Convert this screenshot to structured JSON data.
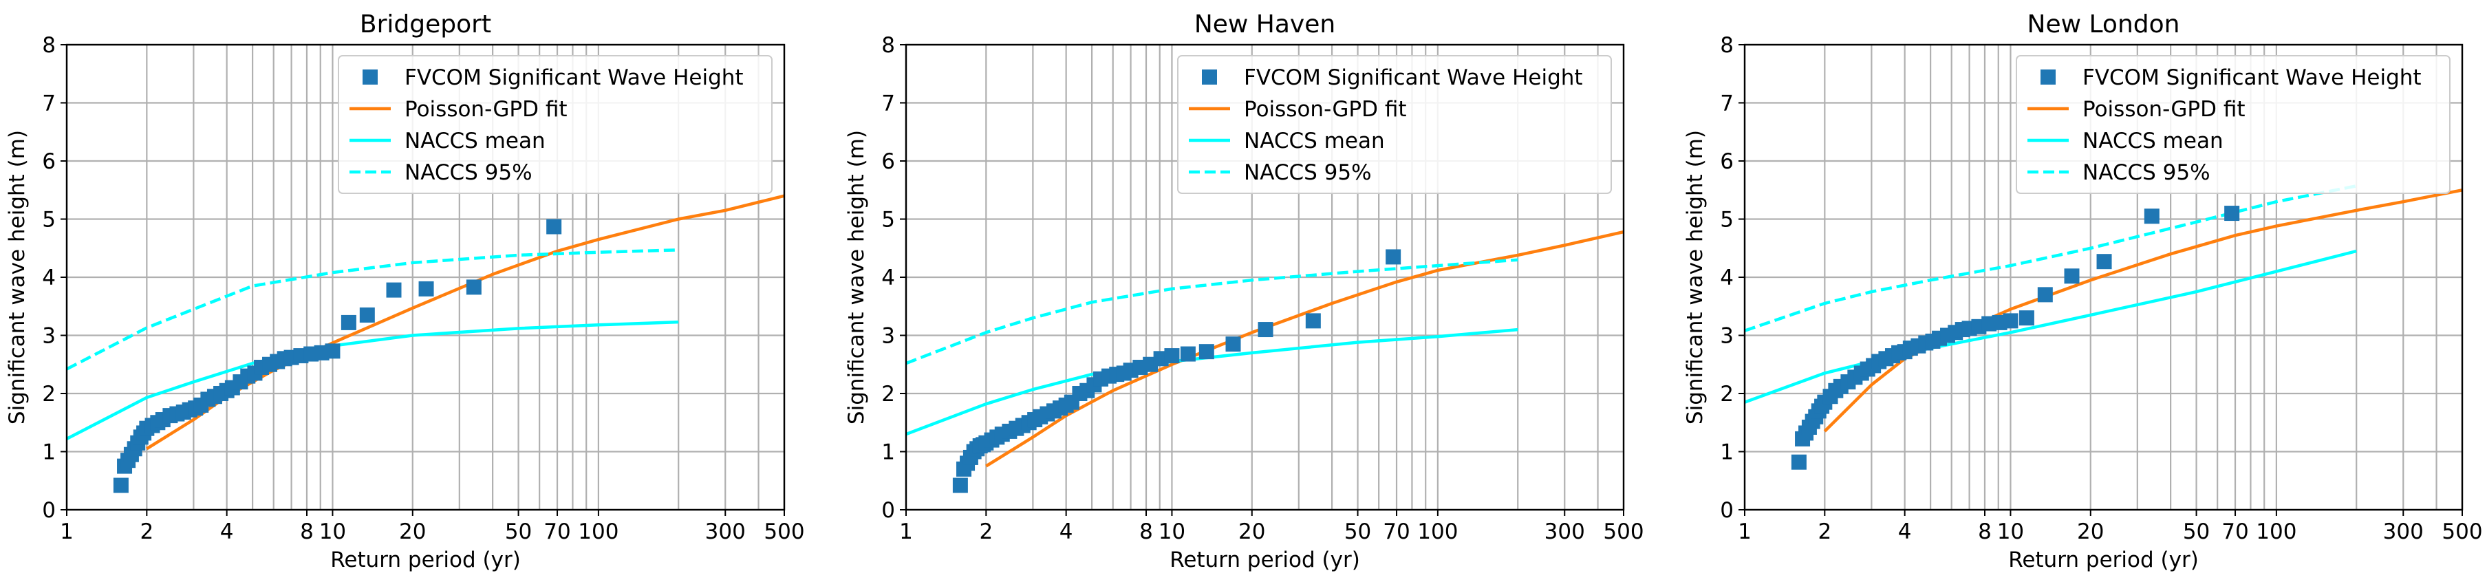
{
  "chart_data": [
    {
      "type": "scatter",
      "title": "Bridgeport",
      "xlabel": "Return period (yr)",
      "ylabel": "Significant wave height (m)",
      "xscale": "log",
      "xlim": [
        1,
        500
      ],
      "ylim": [
        0,
        8
      ],
      "xticks": [
        1,
        2,
        4,
        8,
        10,
        20,
        50,
        70,
        100,
        300,
        500
      ],
      "xtick_labels": [
        "1",
        "2",
        "4",
        "8",
        "10",
        "20",
        "50",
        "70",
        "100",
        "300",
        "500"
      ],
      "yticks": [
        0,
        1,
        2,
        3,
        4,
        5,
        6,
        7,
        8
      ],
      "ytick_labels": [
        "0",
        "1",
        "2",
        "3",
        "4",
        "5",
        "6",
        "7",
        "8"
      ],
      "grid": true,
      "legend": [
        "FVCOM Significant Wave Height",
        "Poisson-GPD fit",
        "NACCS mean",
        "NACCS 95%"
      ],
      "legend_position": "upper-right",
      "series": [
        {
          "name": "FVCOM Significant Wave Height",
          "kind": "markers",
          "color": "#1f77b4",
          "x": [
            1.6,
            1.65,
            1.7,
            1.75,
            1.8,
            1.85,
            1.9,
            1.95,
            2.0,
            2.1,
            2.2,
            2.3,
            2.45,
            2.6,
            2.75,
            2.9,
            3.05,
            3.2,
            3.4,
            3.6,
            3.8,
            4.0,
            4.2,
            4.5,
            4.8,
            5.1,
            5.4,
            5.8,
            6.2,
            6.6,
            7.0,
            7.6,
            8.3,
            9.1,
            10.0,
            11.5,
            13.5,
            17.0,
            22.5,
            34.0,
            68.0
          ],
          "y": [
            0.42,
            0.75,
            0.85,
            0.95,
            1.05,
            1.15,
            1.25,
            1.32,
            1.4,
            1.45,
            1.5,
            1.55,
            1.62,
            1.65,
            1.68,
            1.72,
            1.75,
            1.8,
            1.9,
            1.95,
            2.0,
            2.05,
            2.1,
            2.2,
            2.3,
            2.35,
            2.45,
            2.5,
            2.55,
            2.6,
            2.62,
            2.65,
            2.68,
            2.7,
            2.73,
            3.22,
            3.35,
            3.78,
            3.8,
            3.83,
            4.87
          ]
        },
        {
          "name": "Poisson-GPD fit",
          "kind": "line",
          "color": "#ff7f0e",
          "x": [
            2,
            3,
            4,
            6,
            10,
            20,
            40,
            70,
            100,
            200,
            300,
            500
          ],
          "y": [
            1.05,
            1.55,
            1.95,
            2.4,
            2.87,
            3.47,
            4.05,
            4.45,
            4.65,
            5.0,
            5.15,
            5.4
          ]
        },
        {
          "name": "NACCS mean",
          "kind": "line",
          "color": "#00ffff",
          "x": [
            1,
            2,
            3,
            5,
            10,
            20,
            50,
            100,
            200
          ],
          "y": [
            1.22,
            1.93,
            2.2,
            2.52,
            2.82,
            3.0,
            3.12,
            3.18,
            3.23
          ]
        },
        {
          "name": "NACCS 95%",
          "kind": "dashed",
          "color": "#00ffff",
          "x": [
            1,
            2,
            3,
            5,
            10,
            20,
            50,
            100,
            200
          ],
          "y": [
            2.42,
            3.13,
            3.45,
            3.85,
            4.08,
            4.25,
            4.38,
            4.43,
            4.47
          ]
        }
      ]
    },
    {
      "type": "scatter",
      "title": "New Haven",
      "xlabel": "Return period (yr)",
      "ylabel": "Significant wave height (m)",
      "xscale": "log",
      "xlim": [
        1,
        500
      ],
      "ylim": [
        0,
        8
      ],
      "xticks": [
        1,
        2,
        4,
        8,
        10,
        20,
        50,
        70,
        100,
        300,
        500
      ],
      "xtick_labels": [
        "1",
        "2",
        "4",
        "8",
        "10",
        "20",
        "50",
        "70",
        "100",
        "300",
        "500"
      ],
      "yticks": [
        0,
        1,
        2,
        3,
        4,
        5,
        6,
        7,
        8
      ],
      "ytick_labels": [
        "0",
        "1",
        "2",
        "3",
        "4",
        "5",
        "6",
        "7",
        "8"
      ],
      "grid": true,
      "legend": [
        "FVCOM Significant Wave Height",
        "Poisson-GPD fit",
        "NACCS mean",
        "NACCS 95%"
      ],
      "legend_position": "upper-right",
      "series": [
        {
          "name": "FVCOM Significant Wave Height",
          "kind": "markers",
          "color": "#1f77b4",
          "x": [
            1.6,
            1.65,
            1.7,
            1.75,
            1.8,
            1.85,
            1.9,
            1.95,
            2.0,
            2.1,
            2.2,
            2.3,
            2.45,
            2.6,
            2.75,
            2.9,
            3.05,
            3.2,
            3.4,
            3.6,
            3.8,
            4.0,
            4.2,
            4.5,
            4.8,
            5.1,
            5.4,
            5.8,
            6.2,
            6.6,
            7.0,
            7.6,
            8.3,
            9.1,
            10.0,
            11.5,
            13.5,
            17.0,
            22.5,
            34.0,
            68.0
          ],
          "y": [
            0.42,
            0.7,
            0.8,
            0.9,
            1.0,
            1.05,
            1.1,
            1.12,
            1.15,
            1.2,
            1.25,
            1.3,
            1.35,
            1.4,
            1.45,
            1.5,
            1.55,
            1.6,
            1.65,
            1.7,
            1.75,
            1.8,
            1.85,
            2.0,
            2.05,
            2.15,
            2.25,
            2.3,
            2.33,
            2.35,
            2.4,
            2.45,
            2.5,
            2.6,
            2.65,
            2.68,
            2.72,
            2.85,
            3.1,
            3.25,
            4.35
          ]
        },
        {
          "name": "Poisson-GPD fit",
          "kind": "line",
          "color": "#ff7f0e",
          "x": [
            2,
            3,
            4,
            6,
            10,
            20,
            40,
            70,
            100,
            200,
            300,
            500
          ],
          "y": [
            0.75,
            1.25,
            1.62,
            2.05,
            2.5,
            3.05,
            3.55,
            3.92,
            4.12,
            4.38,
            4.55,
            4.78
          ]
        },
        {
          "name": "NACCS mean",
          "kind": "line",
          "color": "#00ffff",
          "x": [
            1,
            2,
            3,
            5,
            10,
            20,
            50,
            100,
            200
          ],
          "y": [
            1.3,
            1.82,
            2.07,
            2.33,
            2.55,
            2.7,
            2.88,
            2.98,
            3.1
          ]
        },
        {
          "name": "NACCS 95%",
          "kind": "dashed",
          "color": "#00ffff",
          "x": [
            1,
            2,
            3,
            5,
            10,
            20,
            50,
            100,
            200
          ],
          "y": [
            2.52,
            3.05,
            3.3,
            3.57,
            3.8,
            3.95,
            4.1,
            4.2,
            4.3
          ]
        }
      ]
    },
    {
      "type": "scatter",
      "title": "New London",
      "xlabel": "Return period (yr)",
      "ylabel": "Significant wave height (m)",
      "xscale": "log",
      "xlim": [
        1,
        500
      ],
      "ylim": [
        0,
        8
      ],
      "xticks": [
        1,
        2,
        4,
        8,
        10,
        20,
        50,
        70,
        100,
        300,
        500
      ],
      "xtick_labels": [
        "1",
        "2",
        "4",
        "8",
        "10",
        "20",
        "50",
        "70",
        "100",
        "300",
        "500"
      ],
      "yticks": [
        0,
        1,
        2,
        3,
        4,
        5,
        6,
        7,
        8
      ],
      "ytick_labels": [
        "0",
        "1",
        "2",
        "3",
        "4",
        "5",
        "6",
        "7",
        "8"
      ],
      "grid": true,
      "legend": [
        "FVCOM Significant Wave Height",
        "Poisson-GPD fit",
        "NACCS mean",
        "NACCS 95%"
      ],
      "legend_position": "upper-right",
      "series": [
        {
          "name": "FVCOM Significant Wave Height",
          "kind": "markers",
          "color": "#1f77b4",
          "x": [
            1.6,
            1.65,
            1.7,
            1.75,
            1.8,
            1.85,
            1.9,
            1.95,
            2.0,
            2.1,
            2.2,
            2.3,
            2.45,
            2.6,
            2.75,
            2.9,
            3.05,
            3.2,
            3.4,
            3.6,
            3.8,
            4.0,
            4.2,
            4.5,
            4.8,
            5.1,
            5.4,
            5.8,
            6.2,
            6.6,
            7.0,
            7.6,
            8.3,
            9.1,
            10.0,
            11.5,
            13.5,
            17.0,
            22.5,
            34.0,
            68.0
          ],
          "y": [
            0.82,
            1.22,
            1.32,
            1.42,
            1.52,
            1.6,
            1.7,
            1.78,
            1.85,
            1.95,
            2.05,
            2.12,
            2.2,
            2.28,
            2.35,
            2.42,
            2.48,
            2.55,
            2.6,
            2.65,
            2.7,
            2.72,
            2.78,
            2.82,
            2.87,
            2.9,
            2.95,
            3.0,
            3.05,
            3.1,
            3.12,
            3.15,
            3.2,
            3.22,
            3.25,
            3.3,
            3.7,
            4.02,
            4.27,
            5.05,
            5.1
          ]
        },
        {
          "name": "Poisson-GPD fit",
          "kind": "line",
          "color": "#ff7f0e",
          "x": [
            2,
            3,
            4,
            6,
            10,
            20,
            40,
            70,
            100,
            200,
            300,
            500
          ],
          "y": [
            1.35,
            2.15,
            2.6,
            3.0,
            3.45,
            3.95,
            4.4,
            4.72,
            4.88,
            5.15,
            5.3,
            5.5
          ]
        },
        {
          "name": "NACCS mean",
          "kind": "line",
          "color": "#00ffff",
          "x": [
            1,
            2,
            3,
            5,
            10,
            20,
            50,
            100,
            200
          ],
          "y": [
            1.85,
            2.35,
            2.55,
            2.78,
            3.05,
            3.35,
            3.75,
            4.1,
            4.45
          ]
        },
        {
          "name": "NACCS 95%",
          "kind": "dashed",
          "color": "#00ffff",
          "x": [
            1,
            2,
            3,
            5,
            10,
            20,
            50,
            100,
            200
          ],
          "y": [
            3.08,
            3.55,
            3.75,
            3.95,
            4.2,
            4.5,
            4.95,
            5.3,
            5.57
          ]
        }
      ]
    }
  ]
}
